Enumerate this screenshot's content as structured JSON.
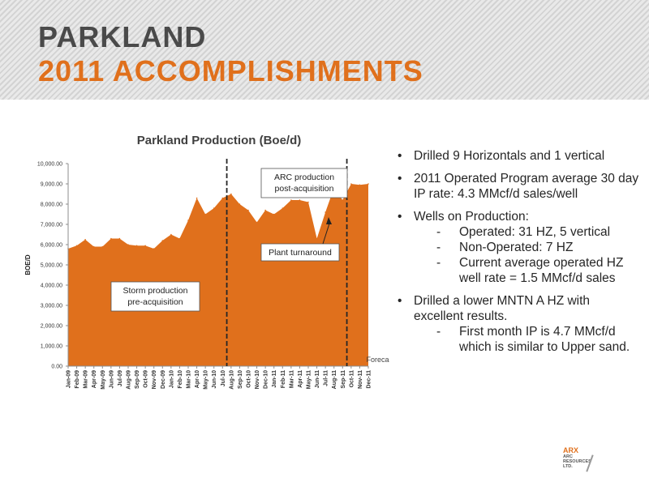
{
  "slide": {
    "title_line1": "PARKLAND",
    "title_line2": "2011 ACCOMPLISHMENTS",
    "colors": {
      "title_dark": "#4a4a4a",
      "title_accent": "#e0701c",
      "area_fill": "#e0701c"
    }
  },
  "bullets": [
    {
      "text": "Drilled 9 Horizontals and 1 vertical",
      "subs": []
    },
    {
      "text": "2011 Operated Program average 30 day IP rate: 4.3 MMcf/d sales/well",
      "subs": []
    },
    {
      "text": "Wells on Production:",
      "subs": [
        "Operated: 31 HZ, 5 vertical",
        "Non-Operated: 7 HZ",
        "Current average operated HZ well rate = 1.5 MMcf/d sales"
      ]
    },
    {
      "text": "Drilled a lower MNTN A HZ with excellent results.",
      "subs": [
        "First month IP is 4.7 MMcf/d which is similar to Upper sand."
      ]
    }
  ],
  "logo": {
    "name": "ARX",
    "subtext": "ARC RESOURCES LTD."
  },
  "chart_data": {
    "type": "area",
    "title": "Parkland Production (Boe/d)",
    "xlabel": "",
    "ylabel": "BOE/D",
    "ylim": [
      0,
      10000
    ],
    "yticks": [
      "0.00",
      "1,000.00",
      "2,000.00",
      "3,000.00",
      "4,000.00",
      "5,000.00",
      "6,000.00",
      "7,000.00",
      "8,000.00",
      "9,000.00",
      "10,000.00"
    ],
    "categories": [
      "Jan-09",
      "Feb-09",
      "Mar-09",
      "Apr-09",
      "May-09",
      "Jun-09",
      "Jul-09",
      "Aug-09",
      "Sep-09",
      "Oct-09",
      "Nov-09",
      "Dec-09",
      "Jan-10",
      "Feb-10",
      "Mar-10",
      "Apr-10",
      "May-10",
      "Jun-10",
      "Jul-10",
      "Aug-10",
      "Sep-10",
      "Oct-10",
      "Nov-10",
      "Dec-10",
      "Jan-11",
      "Feb-11",
      "Mar-11",
      "Apr-11",
      "May-11",
      "Jun-11",
      "Jul-11",
      "Aug-11",
      "Sep-11",
      "Oct-11",
      "Nov-11",
      "Dec-11"
    ],
    "series": [
      {
        "values": [
          5800,
          5950,
          6250,
          5900,
          5900,
          6300,
          6300,
          6000,
          5950,
          5950,
          5800,
          6200,
          6500,
          6300,
          7200,
          8300,
          7500,
          7800,
          8300,
          8500,
          8000,
          7700,
          7100,
          7700,
          7500,
          7800,
          8200,
          8200,
          8100,
          6300,
          7600,
          8800,
          8200,
          9000,
          8950,
          9000
        ]
      }
    ],
    "vlines": [
      {
        "after_index": 18,
        "style": "dashed"
      },
      {
        "after_index": 32,
        "style": "dashed"
      }
    ],
    "annotations": {
      "storm": "Storm production\npre-acquisition",
      "arc": "ARC production\npost-acquisition",
      "plant": "Plant turnaround",
      "forecast": "Forecast"
    },
    "grid": false,
    "legend": "none"
  }
}
